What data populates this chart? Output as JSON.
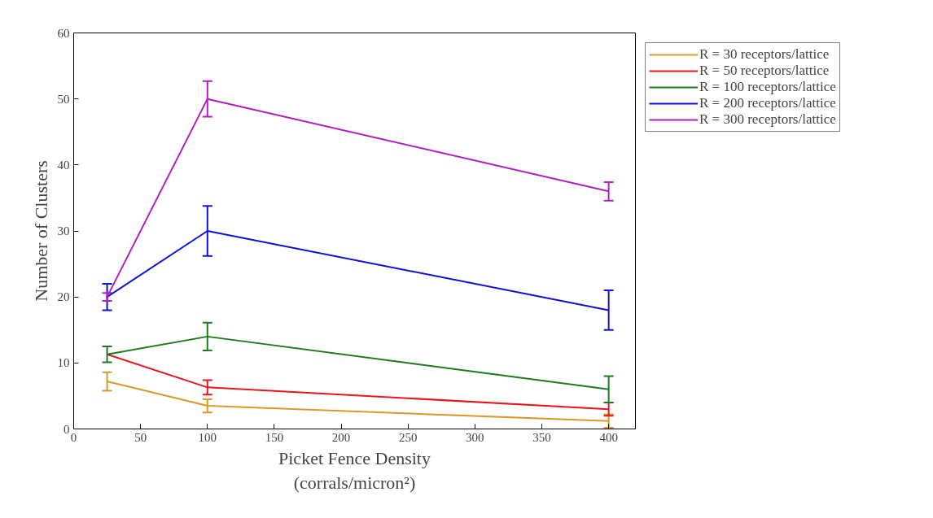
{
  "chart_data": {
    "type": "line",
    "xlabel": "Picket Fence Density\n(corrals/micron²)",
    "ylabel": "Number of Clusters",
    "x": [
      25,
      100,
      400
    ],
    "series": [
      {
        "name": "R = 30 receptors/lattice",
        "color": "#d89a2a",
        "values": [
          7.2,
          3.5,
          1.2
        ],
        "errors": [
          1.4,
          1,
          1
        ]
      },
      {
        "name": "R = 50 receptors/lattice",
        "color": "#e8161e",
        "values": [
          11.3,
          6.3,
          3
        ],
        "errors": [
          null,
          1.1,
          1
        ]
      },
      {
        "name": "R = 100 receptors/lattice",
        "color": "#1d7a1d",
        "values": [
          11.3,
          14,
          6
        ],
        "errors": [
          1.2,
          2.1,
          2
        ]
      },
      {
        "name": "R = 200 receptors/lattice",
        "color": "#1010d8",
        "values": [
          20,
          30,
          18
        ],
        "errors": [
          2,
          3.8,
          3
        ]
      },
      {
        "name": "R = 300 receptors/lattice",
        "color": "#b020c0",
        "values": [
          20,
          50,
          36
        ],
        "errors": [
          0.6,
          2.7,
          1.4
        ]
      }
    ],
    "xlim": [
      0,
      420
    ],
    "ylim": [
      0,
      60
    ],
    "xticks": [
      0,
      50,
      100,
      150,
      200,
      250,
      300,
      350,
      400
    ],
    "yticks": [
      0,
      10,
      20,
      30,
      40,
      50,
      60
    ],
    "grid": false,
    "legend": "top right",
    "marker": "none",
    "line_style": "solid"
  }
}
